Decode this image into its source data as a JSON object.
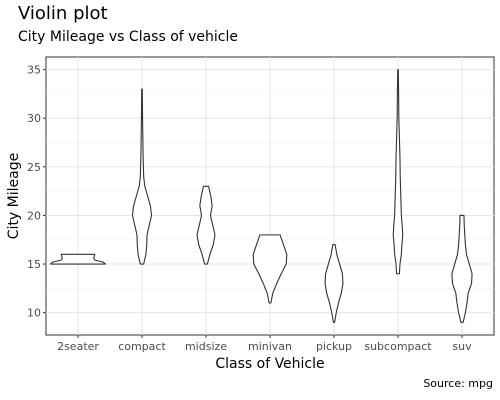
{
  "chart_data": {
    "type": "violin",
    "title": "Violin plot",
    "subtitle": "City Mileage vs Class of vehicle",
    "caption": "Source: mpg",
    "xlabel": "Class of Vehicle",
    "ylabel": "City Mileage",
    "ylim": [
      7.7,
      36.3
    ],
    "yticks": [
      10,
      15,
      20,
      25,
      30,
      35
    ],
    "grid": true,
    "categories": [
      "2seater",
      "compact",
      "midsize",
      "minivan",
      "pickup",
      "subcompact",
      "suv"
    ],
    "violins": [
      {
        "category": "2seater",
        "min": 15,
        "max": 16,
        "profile": [
          [
            15,
            0.98
          ],
          [
            15.2,
            0.9
          ],
          [
            15.4,
            0.6
          ],
          [
            15.6,
            0.56
          ],
          [
            15.8,
            0.58
          ],
          [
            16,
            0.6
          ]
        ]
      },
      {
        "category": "compact",
        "min": 15,
        "max": 33,
        "profile": [
          [
            15,
            0.06
          ],
          [
            16,
            0.14
          ],
          [
            17,
            0.17
          ],
          [
            18,
            0.18
          ],
          [
            19,
            0.26
          ],
          [
            20,
            0.34
          ],
          [
            21,
            0.3
          ],
          [
            22,
            0.2
          ],
          [
            23,
            0.1
          ],
          [
            24,
            0.06
          ],
          [
            26,
            0.04
          ],
          [
            28,
            0.03
          ],
          [
            30,
            0.02
          ],
          [
            33,
            0.01
          ]
        ]
      },
      {
        "category": "midsize",
        "min": 15,
        "max": 23,
        "profile": [
          [
            15,
            0.05
          ],
          [
            16,
            0.14
          ],
          [
            17,
            0.26
          ],
          [
            18,
            0.32
          ],
          [
            19,
            0.24
          ],
          [
            20,
            0.16
          ],
          [
            21,
            0.22
          ],
          [
            22,
            0.17
          ],
          [
            23,
            0.09
          ]
        ]
      },
      {
        "category": "minivan",
        "min": 11,
        "max": 18,
        "profile": [
          [
            11,
            0.03
          ],
          [
            12,
            0.1
          ],
          [
            13,
            0.24
          ],
          [
            14,
            0.4
          ],
          [
            15,
            0.58
          ],
          [
            16,
            0.6
          ],
          [
            17,
            0.48
          ],
          [
            18,
            0.36
          ]
        ]
      },
      {
        "category": "pickup",
        "min": 9,
        "max": 17,
        "profile": [
          [
            9,
            0.02
          ],
          [
            10,
            0.08
          ],
          [
            11,
            0.16
          ],
          [
            12,
            0.26
          ],
          [
            13,
            0.32
          ],
          [
            14,
            0.3
          ],
          [
            15,
            0.2
          ],
          [
            16,
            0.1
          ],
          [
            17,
            0.04
          ]
        ]
      },
      {
        "category": "subcompact",
        "min": 14,
        "max": 35,
        "profile": [
          [
            14,
            0.05
          ],
          [
            15,
            0.07
          ],
          [
            16,
            0.12
          ],
          [
            17,
            0.14
          ],
          [
            18,
            0.17
          ],
          [
            19,
            0.15
          ],
          [
            20,
            0.12
          ],
          [
            22,
            0.1
          ],
          [
            24,
            0.08
          ],
          [
            26,
            0.07
          ],
          [
            28,
            0.05
          ],
          [
            30,
            0.03
          ],
          [
            33,
            0.02
          ],
          [
            35,
            0.01
          ]
        ]
      },
      {
        "category": "suv",
        "min": 9,
        "max": 20,
        "profile": [
          [
            9,
            0.04
          ],
          [
            10,
            0.12
          ],
          [
            11,
            0.18
          ],
          [
            12,
            0.22
          ],
          [
            13,
            0.34
          ],
          [
            14,
            0.36
          ],
          [
            15,
            0.26
          ],
          [
            16,
            0.16
          ],
          [
            17,
            0.12
          ],
          [
            18,
            0.1
          ],
          [
            19,
            0.08
          ],
          [
            20,
            0.07
          ]
        ]
      }
    ]
  }
}
